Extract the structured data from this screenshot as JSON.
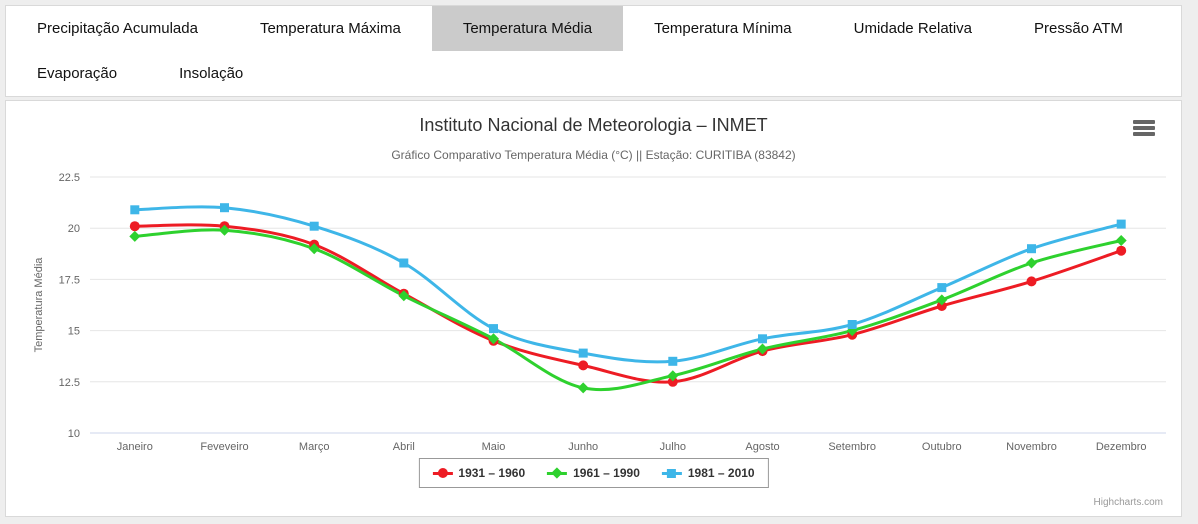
{
  "tabs": {
    "row1": [
      {
        "label": "Precipitação Acumulada",
        "selected": false
      },
      {
        "label": "Temperatura Máxima",
        "selected": false
      },
      {
        "label": "Temperatura Média",
        "selected": true
      },
      {
        "label": "Temperatura Mínima",
        "selected": false
      },
      {
        "label": "Umidade Relativa",
        "selected": false
      },
      {
        "label": "Pressão ATM",
        "selected": false
      }
    ],
    "row2": [
      {
        "label": "Evaporação",
        "selected": false
      },
      {
        "label": "Insolação",
        "selected": false
      }
    ]
  },
  "chart": {
    "title": "Instituto Nacional de Meteorologia – INMET",
    "subtitle": "Gráfico Comparativo Temperatura Média (°C) || Estação: CURITIBA (83842)",
    "credits": "Highcharts.com"
  },
  "chart_data": {
    "type": "line",
    "title": "Instituto Nacional de Meteorologia – INMET",
    "subtitle": "Gráfico Comparativo Temperatura Média (°C) || Estação: CURITIBA (83842)",
    "categories": [
      "Janeiro",
      "Feveveiro",
      "Março",
      "Abril",
      "Maio",
      "Junho",
      "Julho",
      "Agosto",
      "Setembro",
      "Outubro",
      "Novembro",
      "Dezembro"
    ],
    "xlabel": "",
    "ylabel": "Temperatura Média",
    "ylim": [
      10,
      22.5
    ],
    "yticks": [
      10,
      12.5,
      15,
      17.5,
      20,
      22.5
    ],
    "grid": true,
    "legend_position": "bottom",
    "series": [
      {
        "name": "1931 – 1960",
        "color": "#ed1c24",
        "marker": "circle",
        "values": [
          20.1,
          20.1,
          19.2,
          16.8,
          14.5,
          13.3,
          12.5,
          14.0,
          14.8,
          16.2,
          17.4,
          18.9
        ]
      },
      {
        "name": "1961 – 1990",
        "color": "#2ed12e",
        "marker": "diamond",
        "values": [
          19.6,
          19.9,
          19.0,
          16.7,
          14.6,
          12.2,
          12.8,
          14.1,
          15.0,
          16.5,
          18.3,
          19.4
        ]
      },
      {
        "name": "1981 – 2010",
        "color": "#3eb6e8",
        "marker": "square",
        "values": [
          20.9,
          21.0,
          20.1,
          18.3,
          15.1,
          13.9,
          13.5,
          14.6,
          15.3,
          17.1,
          19.0,
          20.2
        ]
      }
    ],
    "colors": {
      "grid": "#e6e6e6",
      "axis_line": "#ccd6eb",
      "tick_text": "#666666",
      "axis_title": "#666666"
    }
  }
}
